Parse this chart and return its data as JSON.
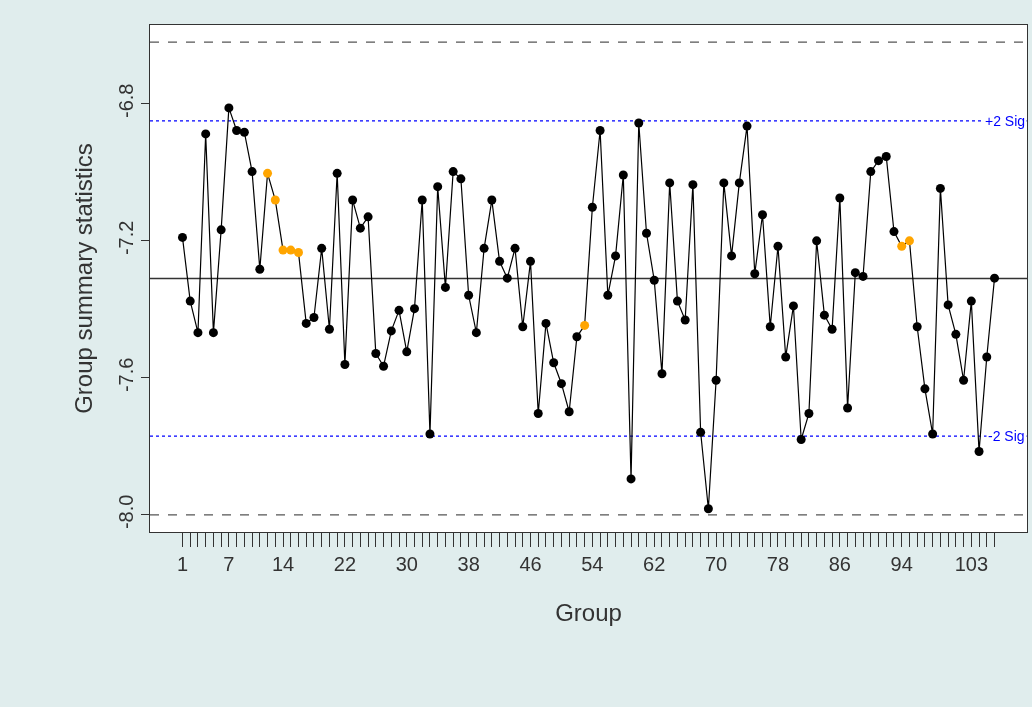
{
  "chart_data": {
    "type": "line",
    "xlabel": "Group",
    "ylabel": "Group summary statistics",
    "categories": [
      "1",
      null,
      null,
      null,
      null,
      null,
      "7",
      null,
      null,
      null,
      null,
      null,
      null,
      "14",
      null,
      null,
      null,
      null,
      null,
      null,
      null,
      "22",
      null,
      null,
      null,
      null,
      null,
      null,
      null,
      "30",
      null,
      null,
      null,
      null,
      null,
      null,
      null,
      "38",
      null,
      null,
      null,
      null,
      null,
      null,
      null,
      "46",
      null,
      null,
      null,
      null,
      null,
      null,
      null,
      "54",
      null,
      null,
      null,
      null,
      null,
      null,
      null,
      "62",
      null,
      null,
      null,
      null,
      null,
      null,
      null,
      "70",
      null,
      null,
      null,
      null,
      null,
      null,
      null,
      "78",
      null,
      null,
      null,
      null,
      null,
      null,
      null,
      "86",
      null,
      null,
      null,
      null,
      null,
      null,
      null,
      "94",
      null,
      null,
      null,
      null,
      null,
      null,
      null,
      null,
      "103",
      null,
      null,
      null
    ],
    "series": [
      {
        "color": "#000000",
        "values": [
          -7.19,
          -7.376,
          -7.468,
          -6.888,
          -7.468,
          -7.168,
          -6.812,
          -6.878,
          -6.883,
          -6.998,
          -7.283,
          -7.003,
          -7.081,
          -7.227,
          -7.227,
          -7.234,
          -7.441,
          -7.424,
          -7.222,
          -7.458,
          -7.003,
          -7.561,
          -7.081,
          -7.163,
          -7.13,
          -7.529,
          -7.566,
          -7.463,
          -7.403,
          -7.524,
          -7.398,
          -7.081,
          -7.764,
          -7.042,
          -7.336,
          -6.998,
          -7.019,
          -7.359,
          -7.468,
          -7.222,
          -7.081,
          -7.26,
          -7.309,
          -7.222,
          -7.451,
          -7.26,
          -7.704,
          -7.441,
          -7.556,
          -7.617,
          -7.699,
          -7.48,
          -7.447,
          -7.102,
          -6.878,
          -7.359,
          -7.244,
          -7.008,
          -7.895,
          -6.856,
          -7.178,
          -7.315,
          -7.588,
          -7.031,
          -7.376,
          -7.431,
          -7.036,
          -7.759,
          -7.982,
          -7.607,
          -7.031,
          -7.244,
          -7.031,
          -6.865,
          -7.296,
          -7.124,
          -7.451,
          -7.216,
          -7.539,
          -7.39,
          -7.78,
          -7.704,
          -7.2,
          -7.417,
          -7.458,
          -7.075,
          -7.688,
          -7.293,
          -7.304,
          -6.998,
          -6.966,
          -6.954,
          -7.173,
          -7.216,
          -7.2,
          -7.451,
          -7.632,
          -7.764,
          -7.047,
          -7.387,
          -7.473,
          -7.607,
          -7.376,
          -7.815,
          -7.539,
          -7.309
        ],
        "colors": [
          "#000000",
          "#000000",
          "#000000",
          "#000000",
          "#000000",
          "#000000",
          "#000000",
          "#000000",
          "#000000",
          "#000000",
          "#000000",
          "#ffa500",
          "#ffa500",
          "#ffa500",
          "#ffa500",
          "#ffa500",
          "#000000",
          "#000000",
          "#000000",
          "#000000",
          "#000000",
          "#000000",
          "#000000",
          "#000000",
          "#000000",
          "#000000",
          "#000000",
          "#000000",
          "#000000",
          "#000000",
          "#000000",
          "#000000",
          "#000000",
          "#000000",
          "#000000",
          "#000000",
          "#000000",
          "#000000",
          "#000000",
          "#000000",
          "#000000",
          "#000000",
          "#000000",
          "#000000",
          "#000000",
          "#000000",
          "#000000",
          "#000000",
          "#000000",
          "#000000",
          "#000000",
          "#000000",
          "#ffa500",
          "#000000",
          "#000000",
          "#000000",
          "#000000",
          "#000000",
          "#000000",
          "#000000",
          "#000000",
          "#000000",
          "#000000",
          "#000000",
          "#000000",
          "#000000",
          "#000000",
          "#000000",
          "#000000",
          "#000000",
          "#000000",
          "#000000",
          "#000000",
          "#000000",
          "#000000",
          "#000000",
          "#000000",
          "#000000",
          "#000000",
          "#000000",
          "#000000",
          "#000000",
          "#000000",
          "#000000",
          "#000000",
          "#000000",
          "#000000",
          "#000000",
          "#000000",
          "#000000",
          "#000000",
          "#000000",
          "#000000",
          "#ffa500",
          "#ffa500",
          "#000000",
          "#000000",
          "#000000",
          "#000000",
          "#000000",
          "#000000",
          "#000000",
          "#000000",
          "#000000",
          "#000000",
          "#000000"
        ]
      }
    ],
    "ylim": [
      -8.05,
      -6.57
    ],
    "yticks": [
      -6.8,
      -7.2,
      -7.6,
      {
        "value": -8.0,
        "label": "-8.0"
      }
    ],
    "ref_lines": [
      {
        "axis": "y",
        "value": -6.62,
        "color": "#555555",
        "line_style": "dashed"
      },
      {
        "axis": "y",
        "value": -8.0,
        "color": "#555555",
        "line_style": "dashed"
      },
      {
        "axis": "y",
        "value": -7.31,
        "color": "#333333",
        "line_style": "solid"
      },
      {
        "axis": "y",
        "value": -6.85,
        "label": "+2 Sig",
        "color": "#0000ff",
        "line_style": "dotted"
      },
      {
        "axis": "y",
        "value": -7.77,
        "label": "-2 Sig",
        "color": "#0000ff",
        "line_style": "dotted"
      }
    ],
    "marker": "circle",
    "grid": false
  }
}
